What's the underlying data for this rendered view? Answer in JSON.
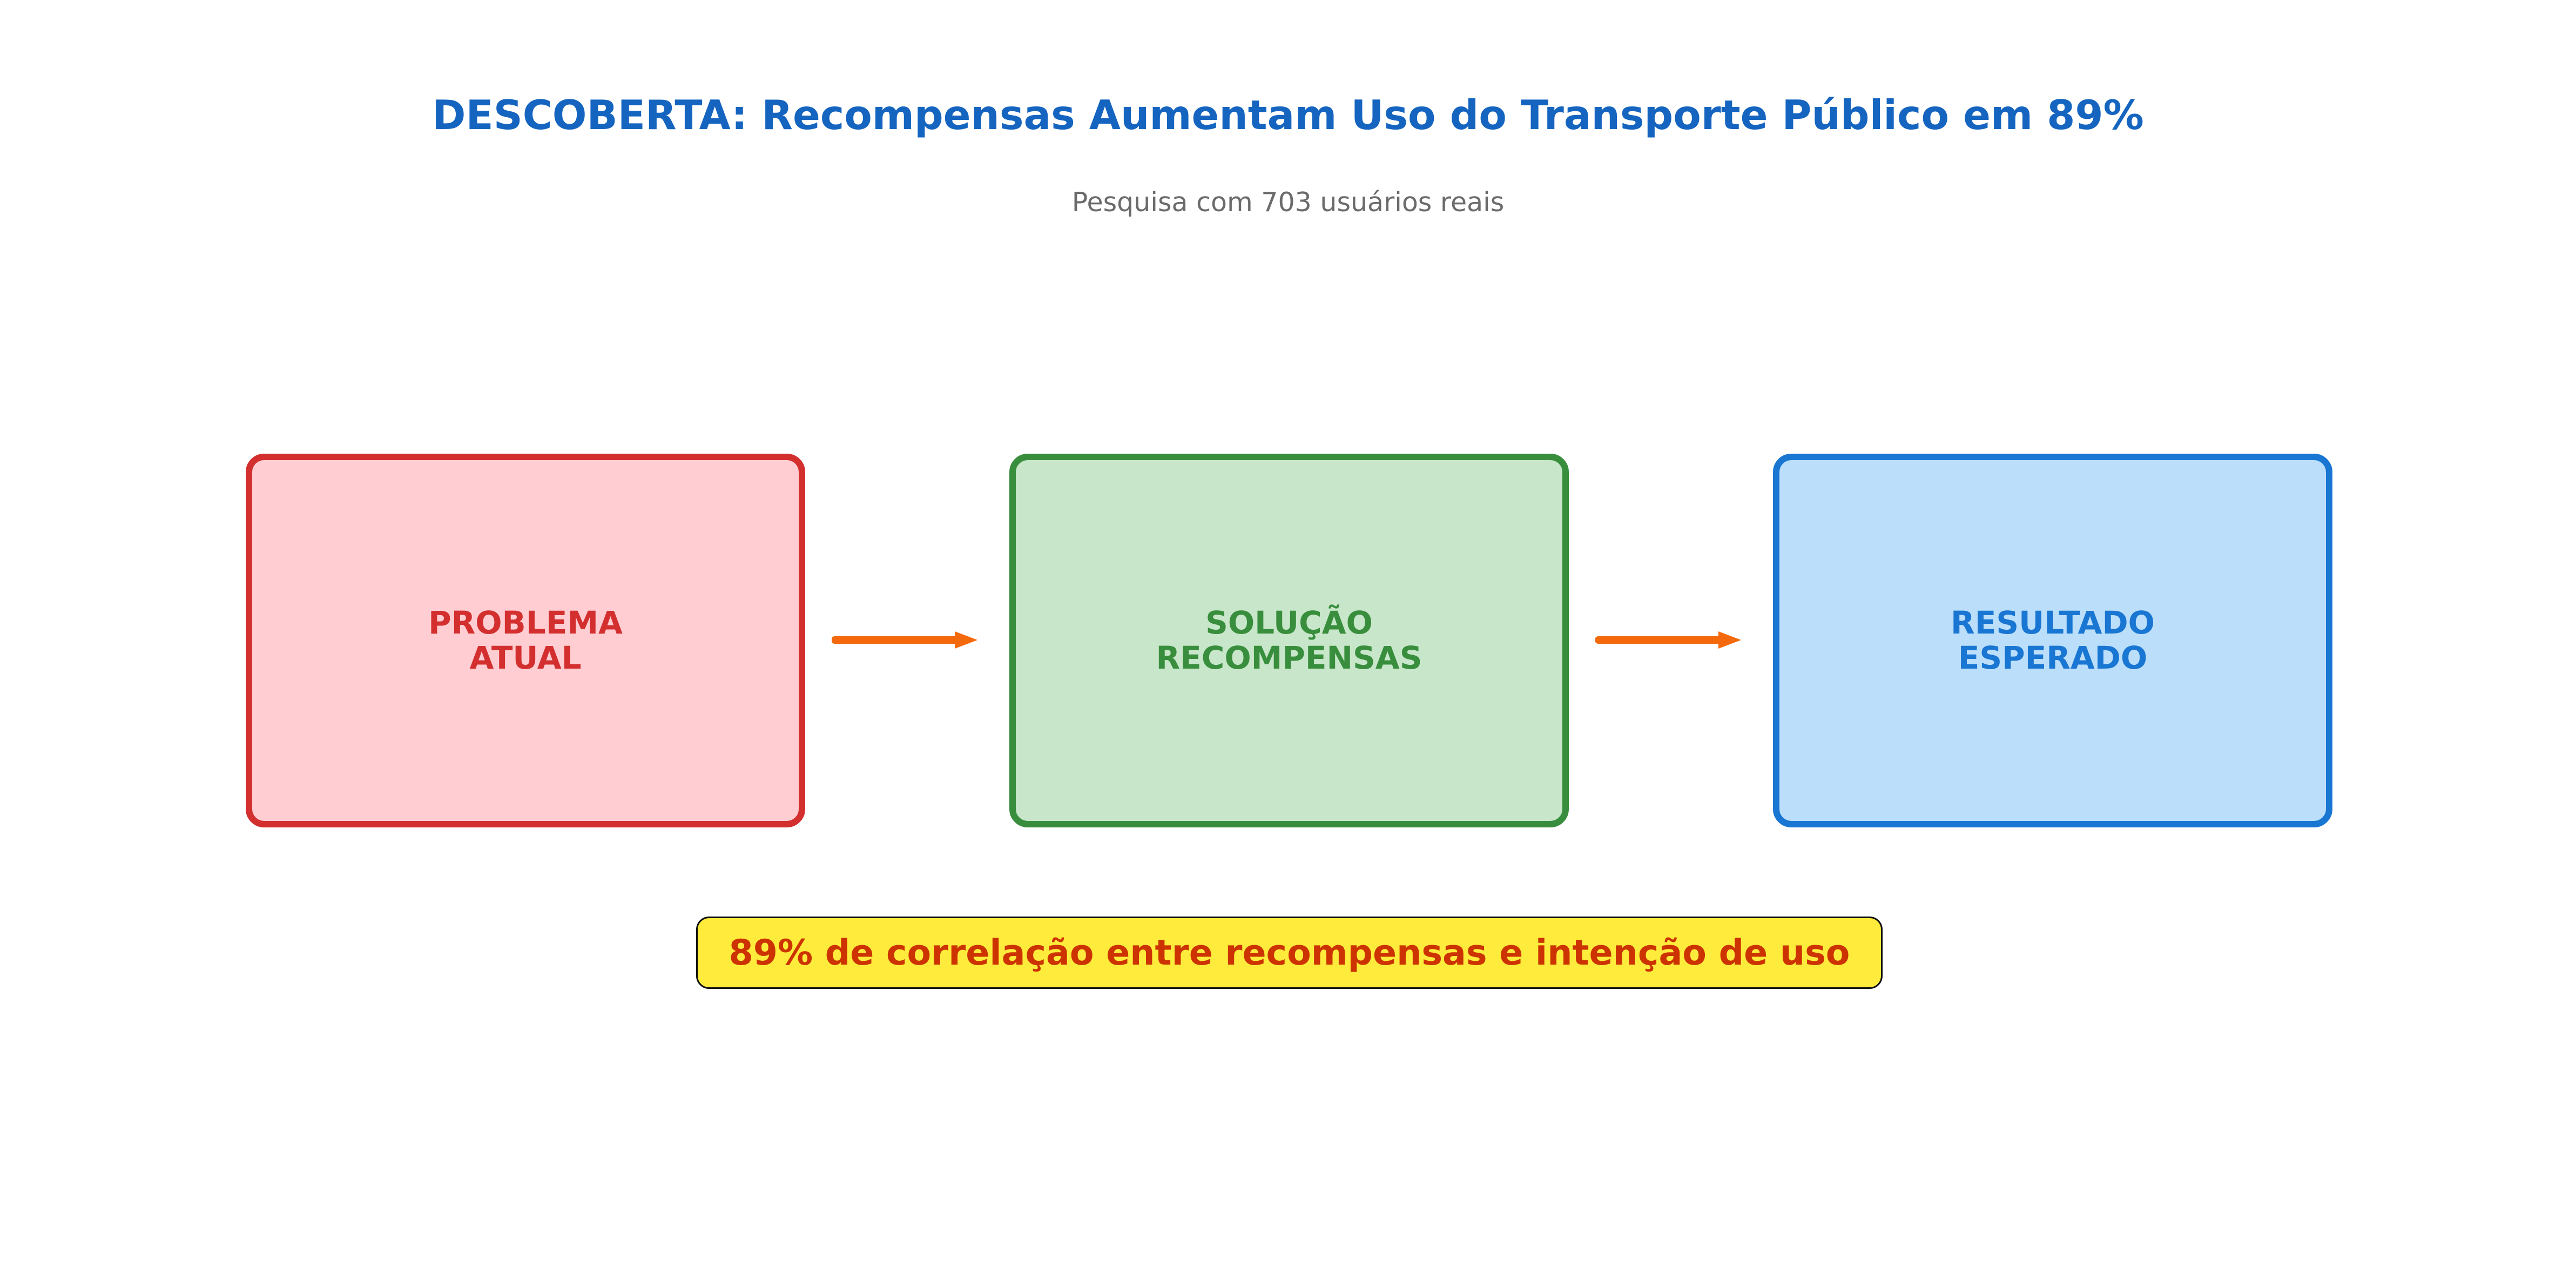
{
  "header": {
    "title": "DESCOBERTA: Recompensas Aumentam Uso do Transporte Público em 89%",
    "subtitle": "Pesquisa com 703 usuários reais"
  },
  "flow": {
    "boxes": [
      {
        "label": "PROBLEMA\nATUAL",
        "fill": "#ffcdd2",
        "border": "#d32f2f",
        "text_color": "#d32f2f"
      },
      {
        "label": "SOLUÇÃO\nRECOMPENSAS",
        "fill": "#c8e6c9",
        "border": "#388e3c",
        "text_color": "#388e3c"
      },
      {
        "label": "RESULTADO\nESPERADO",
        "fill": "#bbdefb",
        "border": "#1976d2",
        "text_color": "#1976d2"
      }
    ],
    "arrow_color": "#f4690b"
  },
  "highlight": {
    "text": "89% de correlação entre recompensas e intenção de uso",
    "fill": "#ffeb3b",
    "text_color": "#cc3300"
  }
}
